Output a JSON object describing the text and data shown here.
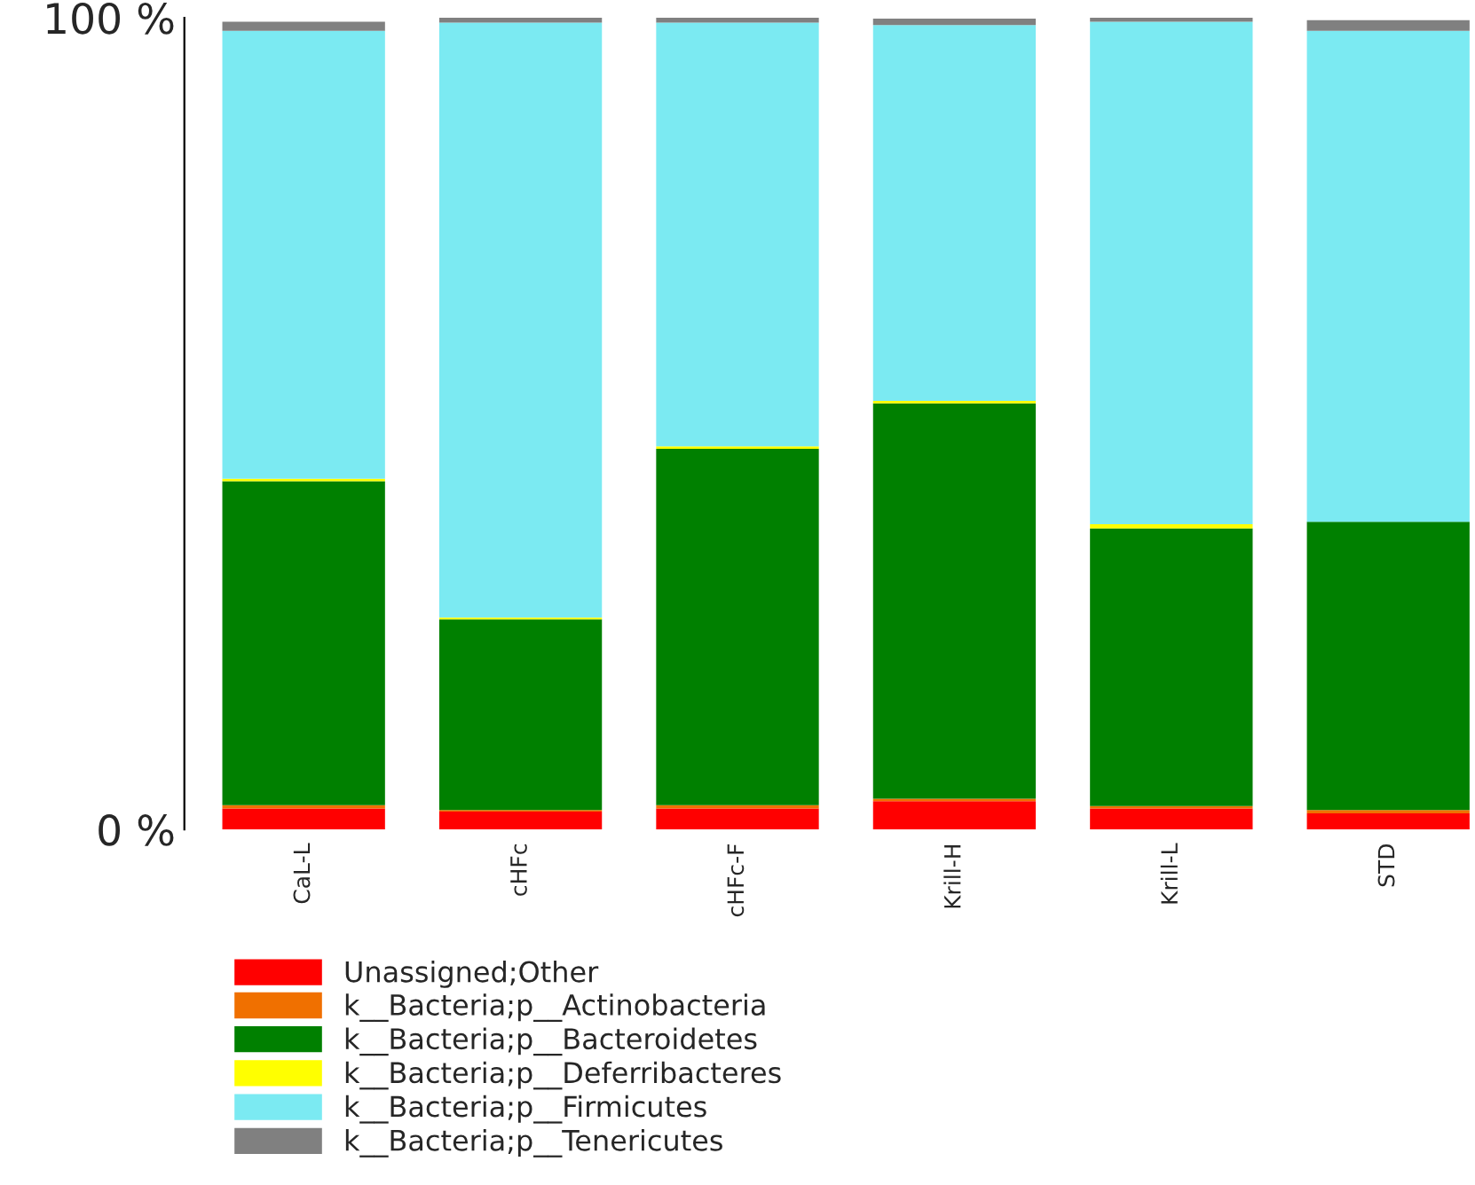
{
  "chart_data": {
    "type": "bar",
    "stacked": true,
    "categories": [
      "CaL-L",
      "cHFc",
      "cHFc-F",
      "Krill-H",
      "Krill-L",
      "STD"
    ],
    "series": [
      {
        "name": "Unassigned;Other",
        "color": "#ff0000",
        "values": [
          2.6,
          2.2,
          2.6,
          3.5,
          2.6,
          2.0
        ]
      },
      {
        "name": "k__Bacteria;p__Actinobacteria",
        "color": "#f07000",
        "values": [
          0.4,
          0.2,
          0.4,
          0.3,
          0.3,
          0.4
        ]
      },
      {
        "name": "k__Bacteria;p__Bacteroidetes",
        "color": "#008000",
        "values": [
          39.9,
          23.5,
          43.9,
          48.7,
          34.2,
          35.5
        ]
      },
      {
        "name": "k__Bacteria;p__Deferribacteres",
        "color": "#ffff00",
        "values": [
          0.3,
          0.2,
          0.3,
          0.3,
          0.5,
          null
        ]
      },
      {
        "name": "k__Bacteria;p__Firmicutes",
        "color": "#7beaf2",
        "values": [
          55.2,
          73.3,
          52.2,
          46.3,
          61.9,
          60.5
        ]
      },
      {
        "name": "k__Bacteria;p__Tenericutes",
        "color": "#808080",
        "values": [
          1.1,
          0.7,
          0.7,
          0.8,
          0.5,
          1.3
        ]
      }
    ],
    "ylim": [
      0,
      100
    ],
    "yticks": [
      {
        "value": 0,
        "label": "0 %"
      },
      {
        "value": 100,
        "label": "100 %"
      }
    ],
    "legend": "bottom left",
    "grid": false
  }
}
